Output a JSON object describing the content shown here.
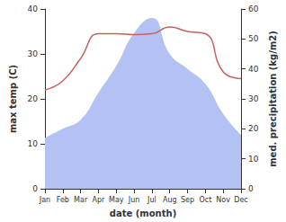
{
  "chart_data": {
    "type": "line",
    "x_label": "date (month)",
    "y_label": "max temp (C)",
    "y2_label": "med. precipitation (kg/m2)",
    "categories": [
      "Jan",
      "Feb",
      "Mar",
      "Apr",
      "May",
      "Jun",
      "Jul",
      "Aug",
      "Sep",
      "Oct",
      "Nov",
      "Dec"
    ],
    "ylim": [
      0,
      40
    ],
    "yticks": [
      0,
      10,
      20,
      30,
      40
    ],
    "y2lim": [
      0,
      60
    ],
    "y2ticks": [
      0,
      10,
      20,
      30,
      40,
      50,
      60
    ],
    "grid": false,
    "series": [
      {
        "name": "med. precipitation",
        "type": "area",
        "axis": "y2",
        "color": "#b3c1f3",
        "values": [
          17,
          20,
          23,
          32,
          41,
          52,
          57,
          45,
          40,
          35,
          25,
          18
        ]
      },
      {
        "name": "max temp",
        "type": "line",
        "axis": "y",
        "color": "#c8615f",
        "values": [
          22,
          24,
          29,
          34.5,
          34.5,
          34.3,
          34.5,
          36,
          35,
          34.5,
          26,
          24.5
        ]
      }
    ]
  }
}
